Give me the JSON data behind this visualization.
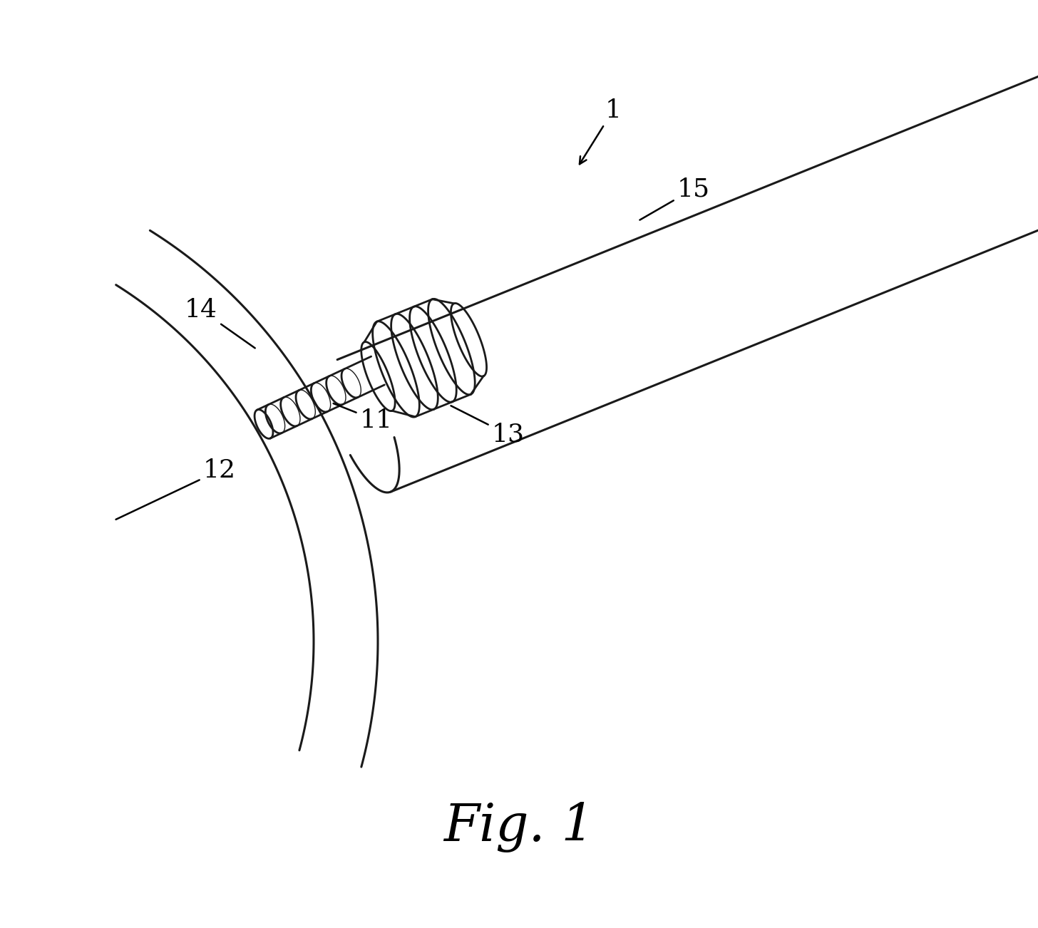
{
  "figure_label": "Fig. 1",
  "bg_color": "#ffffff",
  "line_color": "#1a1a1a",
  "lw": 2.0,
  "fig_width": 14.56,
  "fig_height": 13.02,
  "dpi": 100,
  "label_fontsize": 26,
  "caption_fontsize": 52
}
